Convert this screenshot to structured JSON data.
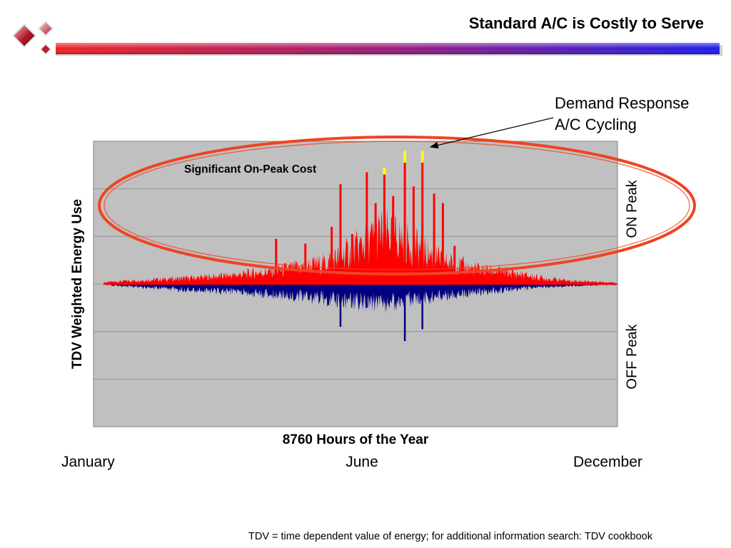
{
  "slide": {
    "title": "Standard A/C is Costly to Serve",
    "footnote": "TDV = time dependent value of energy; for additional information search: TDV cookbook"
  },
  "colors": {
    "on_peak": "#ff0000",
    "off_peak": "#000080",
    "plot_background": "#c0c0c0",
    "highlight_ellipse": "#ee4422",
    "demand_response_marker": "#ffff00"
  },
  "chart_data": {
    "type": "bar",
    "xlabel": "8760 Hours of the Year",
    "ylabel": "TDV Weighted Energy Use",
    "x_tick_labels": [
      "January",
      "June",
      "December"
    ],
    "region_labels": {
      "upper": "ON Peak",
      "lower": "OFF Peak"
    },
    "annotations": {
      "highlight": "Significant On-Peak Cost",
      "callout_line1": "Demand Response",
      "callout_line2": "A/C Cycling"
    },
    "x_range": [
      0,
      8760
    ],
    "y_range": [
      -3,
      3
    ],
    "grid": "horizontal",
    "legend": "none",
    "series": [
      {
        "key": "on_peak",
        "sign": "positive"
      },
      {
        "key": "off_peak",
        "sign": "negative"
      }
    ],
    "envelope_on_peak": [
      [
        0,
        0.04
      ],
      [
        400,
        0.08
      ],
      [
        1000,
        0.12
      ],
      [
        1600,
        0.16
      ],
      [
        2200,
        0.22
      ],
      [
        2700,
        0.3
      ],
      [
        3300,
        0.42
      ],
      [
        3800,
        0.55
      ],
      [
        4300,
        0.9
      ],
      [
        4800,
        1.35
      ],
      [
        5300,
        1.0
      ],
      [
        5800,
        0.6
      ],
      [
        6300,
        0.4
      ],
      [
        6900,
        0.3
      ],
      [
        7500,
        0.15
      ],
      [
        8000,
        0.08
      ],
      [
        8760,
        0.04
      ]
    ],
    "envelope_off_peak": [
      [
        0,
        0.02
      ],
      [
        400,
        0.06
      ],
      [
        1000,
        0.12
      ],
      [
        1600,
        0.16
      ],
      [
        2200,
        0.2
      ],
      [
        2700,
        0.25
      ],
      [
        3300,
        0.3
      ],
      [
        3800,
        0.38
      ],
      [
        4300,
        0.45
      ],
      [
        4800,
        0.5
      ],
      [
        5300,
        0.42
      ],
      [
        5800,
        0.3
      ],
      [
        6300,
        0.22
      ],
      [
        6900,
        0.15
      ],
      [
        7500,
        0.08
      ],
      [
        8000,
        0.05
      ],
      [
        8760,
        0.02
      ]
    ],
    "on_peak_spikes": [
      [
        2950,
        0.95
      ],
      [
        3450,
        0.85
      ],
      [
        3900,
        1.2
      ],
      [
        4050,
        2.1
      ],
      [
        4250,
        1.05
      ],
      [
        4500,
        2.35
      ],
      [
        4650,
        1.7
      ],
      [
        4800,
        2.45
      ],
      [
        4950,
        1.85
      ],
      [
        5150,
        2.55
      ],
      [
        5300,
        2.05
      ],
      [
        5450,
        2.55
      ],
      [
        5650,
        1.9
      ],
      [
        5800,
        1.7
      ],
      [
        6000,
        0.8
      ]
    ],
    "off_peak_spikes": [
      [
        4050,
        -0.9
      ],
      [
        4500,
        -0.5
      ],
      [
        5150,
        -1.2
      ],
      [
        5450,
        -0.95
      ]
    ],
    "demand_response_peaks": [
      [
        4800,
        2.45
      ],
      [
        5150,
        2.8
      ],
      [
        5450,
        2.8
      ]
    ]
  }
}
